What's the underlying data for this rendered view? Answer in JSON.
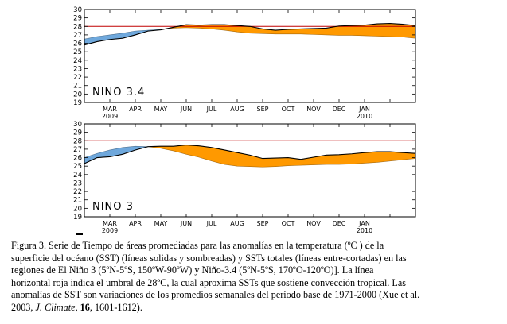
{
  "chart_data": [
    {
      "type": "area",
      "label": "NINO 3.4",
      "yticks": [
        19,
        20,
        21,
        22,
        23,
        24,
        25,
        26,
        27,
        28,
        29,
        30
      ],
      "ylim": [
        19,
        30
      ],
      "threshold": 28,
      "months": [
        "MAR",
        "APR",
        "MAY",
        "JUN",
        "JUL",
        "AUG",
        "SEP",
        "OCT",
        "NOV",
        "DEC",
        "JAN"
      ],
      "year_labels": [
        {
          "month": "MAR",
          "text": "2009"
        },
        {
          "month": "JAN",
          "text": "2010"
        }
      ],
      "x_range": [
        0,
        13
      ],
      "series": [
        {
          "name": "sst",
          "x": [
            0,
            0.5,
            1,
            1.5,
            2,
            2.5,
            3,
            3.5,
            4,
            4.5,
            5,
            5.5,
            6,
            6.5,
            7,
            7.5,
            8,
            8.5,
            9,
            9.5,
            10,
            10.5,
            11,
            11.5,
            12,
            12.5,
            13
          ],
          "values": [
            25.8,
            26.2,
            26.45,
            26.6,
            27.0,
            27.45,
            27.6,
            27.9,
            28.2,
            28.15,
            28.2,
            28.2,
            28.1,
            28.0,
            27.7,
            27.55,
            27.65,
            27.7,
            27.75,
            27.8,
            28.05,
            28.1,
            28.15,
            28.3,
            28.35,
            28.25,
            28.1
          ]
        },
        {
          "name": "climatology",
          "x": [
            0,
            0.5,
            1,
            1.5,
            2,
            2.5,
            3,
            3.5,
            4,
            4.5,
            5,
            5.5,
            6,
            6.5,
            7,
            7.5,
            8,
            8.5,
            9,
            9.5,
            10,
            10.5,
            11,
            11.5,
            12,
            12.5,
            13
          ],
          "values": [
            26.5,
            26.8,
            27.0,
            27.2,
            27.45,
            27.55,
            27.65,
            27.8,
            27.85,
            27.8,
            27.7,
            27.55,
            27.35,
            27.2,
            27.15,
            27.1,
            27.1,
            27.1,
            27.05,
            27.0,
            26.95,
            26.95,
            26.9,
            26.85,
            26.8,
            26.75,
            26.6
          ]
        }
      ]
    },
    {
      "type": "area",
      "label": "NINO 3",
      "yticks": [
        19,
        20,
        21,
        22,
        23,
        24,
        25,
        26,
        27,
        28,
        29,
        30
      ],
      "ylim": [
        19,
        30
      ],
      "threshold": 28,
      "months": [
        "MAR",
        "APR",
        "MAY",
        "JUN",
        "JUL",
        "AUG",
        "SEP",
        "OCT",
        "NOV",
        "DEC",
        "JAN"
      ],
      "year_labels": [
        {
          "month": "MAR",
          "text": "2009"
        },
        {
          "month": "JAN",
          "text": "2010"
        }
      ],
      "x_range": [
        0,
        13
      ],
      "series": [
        {
          "name": "sst",
          "x": [
            0,
            0.5,
            1,
            1.5,
            2,
            2.5,
            3,
            3.5,
            4,
            4.5,
            5,
            5.5,
            6,
            6.5,
            7,
            7.5,
            8,
            8.5,
            9,
            9.5,
            10,
            10.5,
            11,
            11.5,
            12,
            12.5,
            13
          ],
          "values": [
            25.3,
            26.0,
            26.1,
            26.4,
            26.9,
            27.3,
            27.35,
            27.35,
            27.5,
            27.4,
            27.2,
            26.9,
            26.6,
            26.3,
            25.9,
            25.95,
            26.0,
            25.8,
            26.05,
            26.3,
            26.35,
            26.45,
            26.6,
            26.7,
            26.7,
            26.6,
            26.5
          ]
        },
        {
          "name": "climatology",
          "x": [
            0,
            0.5,
            1,
            1.5,
            2,
            2.5,
            3,
            3.5,
            4,
            4.5,
            5,
            5.5,
            6,
            6.5,
            7,
            7.5,
            8,
            8.5,
            9,
            9.5,
            10,
            10.5,
            11,
            11.5,
            12,
            12.5,
            13
          ],
          "values": [
            26.0,
            26.5,
            26.9,
            27.2,
            27.35,
            27.3,
            27.1,
            26.8,
            26.4,
            26.05,
            25.6,
            25.2,
            25.0,
            24.95,
            24.9,
            24.95,
            25.05,
            25.1,
            25.15,
            25.2,
            25.2,
            25.25,
            25.35,
            25.45,
            25.6,
            25.75,
            25.9
          ]
        }
      ]
    }
  ],
  "colors": {
    "warm": "#FF9900",
    "cool": "#6FA8DC",
    "threshold": "#C00000",
    "line": "#000000"
  },
  "caption": {
    "line1": "Figura 3. Serie de Tiempo de áreas promediadas para las anomalías en la temperatura (ºC ) de la",
    "line2": "superficie del océano (SST) (líneas solidas y sombreadas) y SSTs totales (líneas entre-cortadas)  en las",
    "line3": "regiones de El Niño 3 (5ºN-5ºS, 150ºW-90ºW) y Niño-3.4 (5ºN-5ºS, 170ºO-120ºO)].   La línea",
    "line4": "horizontal roja indica el umbral de 28ºC, la cual aproxima SSTs que sostiene convección tropical. Las",
    "line5": "anomalías de SST son variaciones de los promedios semanales del período base de 1971-2000 (Xue et al.",
    "line6_a": "2003, ",
    "line6_journal": "J. Climate",
    "line6_b": ", ",
    "line6_volume": "16",
    "line6_c": ", 1601-1612)."
  }
}
